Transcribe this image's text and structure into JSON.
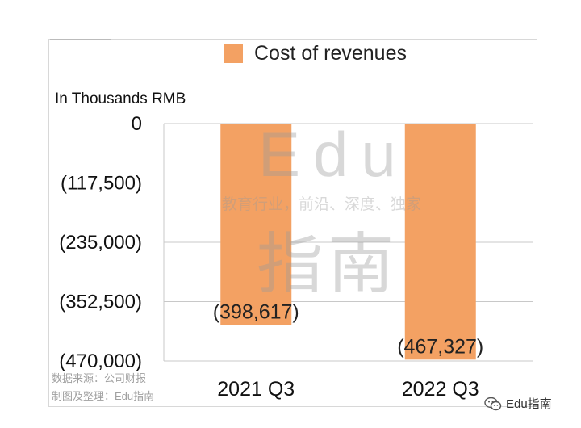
{
  "chart_data": {
    "type": "bar",
    "legend": [
      "Cost of revenues"
    ],
    "legend_position": "top",
    "unit_label": "In Thousands RMB",
    "categories": [
      "2021 Q3",
      "2022 Q3"
    ],
    "series": [
      {
        "name": "Cost of revenues",
        "values": [
          -398617,
          -467327
        ],
        "labels": [
          "(398,617)",
          "(467,327)"
        ]
      }
    ],
    "y_ticks": [
      0,
      -117500,
      -235000,
      -352500,
      -470000
    ],
    "y_tick_labels": [
      "0",
      "(117,500)",
      "(235,000)",
      "(352,500)",
      "(470,000)"
    ],
    "ylim": [
      -470000,
      0
    ],
    "grid": true,
    "bar_color": "#f3a163",
    "grid_color": "#c8c8c8"
  },
  "watermark": {
    "line1": "Edu",
    "line2": "教育行业，前沿、深度、独家",
    "line3": "指南"
  },
  "source": {
    "line1": "数据来源：公司财报",
    "line2": "制图及整理：Edu指南"
  },
  "brand": {
    "icon": "wechat-icon",
    "text": "Edu指南"
  }
}
